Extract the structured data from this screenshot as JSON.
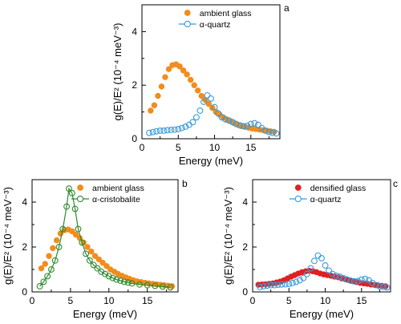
{
  "chart_data": [
    {
      "panel": "a",
      "type": "scatter",
      "xlabel": "Energy (meV)",
      "ylabel": "g(E)/E² (10⁻⁴ meV⁻³)",
      "xlim": [
        0,
        19
      ],
      "ylim": [
        0,
        5
      ],
      "xticks": [
        0,
        5,
        10,
        15
      ],
      "yticks": [
        0,
        2,
        4
      ],
      "grid": false,
      "legend_position": "top-right",
      "series": [
        {
          "name": "ambient glass",
          "marker": "filled-circle",
          "color": "#f28c1c",
          "x": [
            1.2,
            1.7,
            2.2,
            2.7,
            3.2,
            3.7,
            4.2,
            4.7,
            5.2,
            5.7,
            6.2,
            6.7,
            7.2,
            7.7,
            8.2,
            8.7,
            9.2,
            9.7,
            10.2,
            10.7,
            11.2,
            11.7,
            12.2,
            12.7,
            13.2,
            13.7,
            14.2,
            14.7,
            15.2,
            15.7,
            16.2,
            16.7,
            17.2,
            17.7,
            18.2
          ],
          "y": [
            1.05,
            1.25,
            1.6,
            1.95,
            2.3,
            2.6,
            2.75,
            2.78,
            2.7,
            2.55,
            2.4,
            2.2,
            2.0,
            1.8,
            1.6,
            1.45,
            1.3,
            1.15,
            1.0,
            0.9,
            0.8,
            0.72,
            0.65,
            0.58,
            0.52,
            0.47,
            0.44,
            0.41,
            0.38,
            0.36,
            0.34,
            0.32,
            0.3,
            0.28,
            0.26
          ]
        },
        {
          "name": "α-quartz",
          "marker": "open-circle",
          "color": "#3a9ad9",
          "x": [
            1.0,
            1.5,
            2.0,
            2.5,
            3.0,
            3.5,
            4.0,
            4.5,
            5.0,
            5.5,
            6.0,
            6.5,
            7.0,
            7.5,
            8.0,
            8.5,
            9.0,
            9.5,
            10.0,
            10.5,
            11.0,
            11.5,
            12.0,
            12.5,
            13.0,
            13.5,
            14.0,
            14.5,
            15.0,
            15.5,
            16.0,
            16.5,
            17.0,
            17.5,
            18.0,
            18.5
          ],
          "y": [
            0.22,
            0.25,
            0.28,
            0.3,
            0.3,
            0.32,
            0.33,
            0.34,
            0.36,
            0.4,
            0.45,
            0.52,
            0.62,
            0.8,
            1.05,
            1.38,
            1.62,
            1.5,
            1.18,
            0.95,
            0.8,
            0.72,
            0.68,
            0.62,
            0.55,
            0.5,
            0.47,
            0.48,
            0.55,
            0.58,
            0.52,
            0.4,
            0.3,
            0.25,
            0.22,
            0.2
          ]
        }
      ]
    },
    {
      "panel": "b",
      "type": "scatter",
      "xlabel": "Energy (meV)",
      "ylabel": "g(E)/E² (10⁻⁴ meV⁻³)",
      "xlim": [
        0,
        19
      ],
      "ylim": [
        0,
        5
      ],
      "xticks": [
        0,
        5,
        10,
        15
      ],
      "yticks": [
        0,
        2,
        4
      ],
      "grid": false,
      "legend_position": "top-right",
      "series": [
        {
          "name": "ambient glass",
          "marker": "filled-circle",
          "color": "#f28c1c",
          "x": [
            1.2,
            1.7,
            2.2,
            2.7,
            3.2,
            3.7,
            4.2,
            4.7,
            5.2,
            5.7,
            6.2,
            6.7,
            7.2,
            7.7,
            8.2,
            8.7,
            9.2,
            9.7,
            10.2,
            10.7,
            11.2,
            11.7,
            12.2,
            12.7,
            13.2,
            13.7,
            14.2,
            14.7,
            15.2,
            15.7,
            16.2,
            16.7,
            17.2,
            17.7,
            18.2
          ],
          "y": [
            1.05,
            1.25,
            1.6,
            1.95,
            2.3,
            2.6,
            2.75,
            2.78,
            2.7,
            2.55,
            2.4,
            2.2,
            2.0,
            1.8,
            1.6,
            1.45,
            1.3,
            1.15,
            1.0,
            0.9,
            0.8,
            0.72,
            0.65,
            0.58,
            0.52,
            0.47,
            0.44,
            0.41,
            0.38,
            0.36,
            0.34,
            0.32,
            0.3,
            0.28,
            0.26
          ]
        },
        {
          "name": "α-cristobalite",
          "marker": "open-circle-line",
          "color": "#2e8b2e",
          "x": [
            1.0,
            1.5,
            2.0,
            2.5,
            3.0,
            3.5,
            4.0,
            4.5,
            4.8,
            5.2,
            5.6,
            6.0,
            6.5,
            7.0,
            7.5,
            8.0,
            8.5,
            9.0,
            9.5,
            10.0,
            10.5,
            11.0,
            11.5,
            12.0,
            12.5,
            13.0,
            14.0,
            15.0,
            16.0,
            17.0,
            18.0
          ],
          "y": [
            0.25,
            0.45,
            0.7,
            1.0,
            1.4,
            2.0,
            2.8,
            3.8,
            4.6,
            4.4,
            3.7,
            2.8,
            2.2,
            1.7,
            1.4,
            1.2,
            1.05,
            0.9,
            0.8,
            0.7,
            0.62,
            0.55,
            0.5,
            0.45,
            0.42,
            0.38,
            0.33,
            0.3,
            0.27,
            0.24,
            0.2
          ]
        }
      ]
    },
    {
      "panel": "c",
      "type": "scatter",
      "xlabel": "Energy (meV)",
      "ylabel": "g(E)/E² (10⁻⁴ meV⁻³)",
      "xlim": [
        0,
        19
      ],
      "ylim": [
        0,
        5
      ],
      "xticks": [
        0,
        5,
        10,
        15
      ],
      "yticks": [
        0,
        2,
        4
      ],
      "grid": false,
      "legend_position": "top-right",
      "series": [
        {
          "name": "densified glass",
          "marker": "filled-circle",
          "color": "#e02020",
          "x": [
            0.8,
            1.3,
            1.8,
            2.3,
            2.8,
            3.3,
            3.8,
            4.3,
            4.8,
            5.3,
            5.8,
            6.3,
            6.8,
            7.3,
            7.8,
            8.3,
            8.8,
            9.3,
            9.8,
            10.3,
            10.8,
            11.3,
            11.8,
            12.3,
            12.8,
            13.3,
            13.8,
            14.3,
            14.8,
            15.3,
            15.8,
            16.3,
            16.8,
            17.3,
            17.8,
            18.3
          ],
          "y": [
            0.32,
            0.33,
            0.34,
            0.36,
            0.38,
            0.42,
            0.46,
            0.52,
            0.6,
            0.68,
            0.75,
            0.82,
            0.88,
            0.92,
            0.94,
            0.92,
            0.88,
            0.82,
            0.78,
            0.75,
            0.72,
            0.68,
            0.65,
            0.6,
            0.56,
            0.52,
            0.48,
            0.44,
            0.4,
            0.38,
            0.36,
            0.33,
            0.31,
            0.29,
            0.27,
            0.25
          ]
        },
        {
          "name": "α-quartz",
          "marker": "open-circle",
          "color": "#3a9ad9",
          "x": [
            1.0,
            1.5,
            2.0,
            2.5,
            3.0,
            3.5,
            4.0,
            4.5,
            5.0,
            5.5,
            6.0,
            6.5,
            7.0,
            7.5,
            8.0,
            8.5,
            9.0,
            9.5,
            10.0,
            10.5,
            11.0,
            11.5,
            12.0,
            12.5,
            13.0,
            13.5,
            14.0,
            14.5,
            15.0,
            15.5,
            16.0,
            16.5,
            17.0,
            17.5,
            18.0,
            18.5
          ],
          "y": [
            0.22,
            0.25,
            0.28,
            0.3,
            0.3,
            0.32,
            0.33,
            0.34,
            0.36,
            0.4,
            0.45,
            0.52,
            0.62,
            0.8,
            1.05,
            1.38,
            1.62,
            1.5,
            1.18,
            0.95,
            0.8,
            0.72,
            0.68,
            0.62,
            0.55,
            0.5,
            0.47,
            0.48,
            0.55,
            0.58,
            0.52,
            0.4,
            0.3,
            0.25,
            0.22,
            0.2
          ]
        }
      ]
    }
  ]
}
